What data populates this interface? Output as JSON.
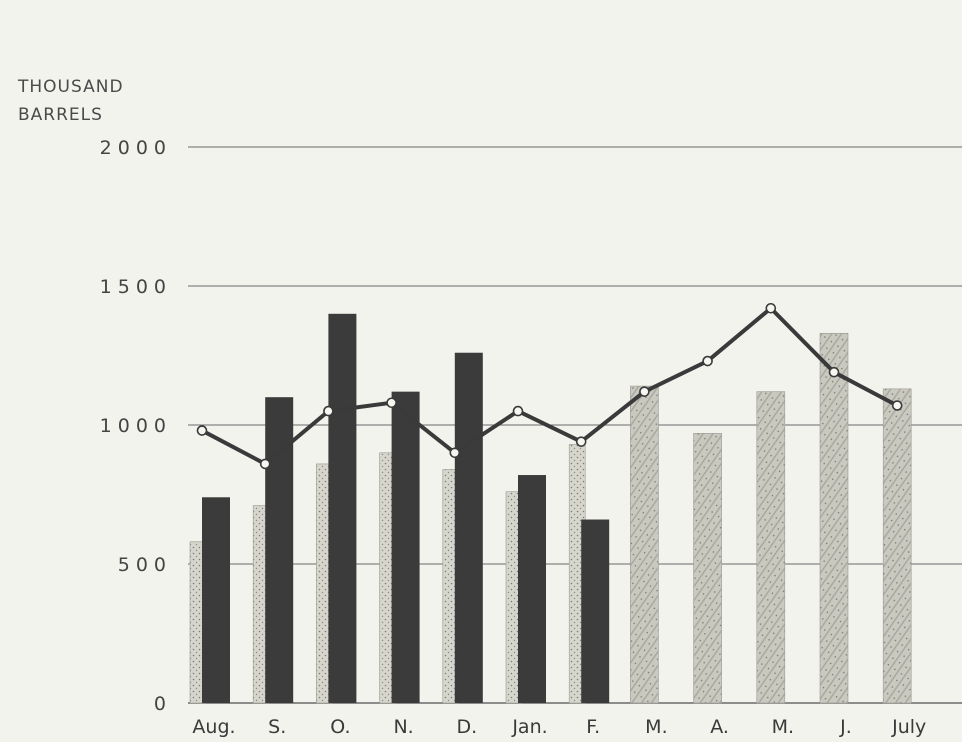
{
  "chart_data": {
    "type": "bar",
    "ylabel": [
      "THOUSAND",
      "BARRELS"
    ],
    "ylim": [
      0,
      2000
    ],
    "yticks": [
      0,
      500,
      1000,
      1500,
      2000
    ],
    "ytick_labels": [
      "0",
      "500",
      "1000",
      "1500",
      "2000"
    ],
    "categories": [
      "Aug.",
      "S.",
      "O.",
      "N.",
      "D.",
      "Jan.",
      "F.",
      "M.",
      "A.",
      "M.",
      "J.",
      "July"
    ],
    "grid": true,
    "legend": "none",
    "series": [
      {
        "kind": "bar",
        "style": "dotted-light",
        "values": [
          580,
          710,
          860,
          900,
          840,
          760,
          930,
          null,
          null,
          null,
          null,
          null
        ]
      },
      {
        "kind": "bar",
        "style": "solid-dark",
        "values": [
          740,
          1100,
          1400,
          1120,
          1260,
          820,
          660,
          null,
          null,
          null,
          null,
          null
        ]
      },
      {
        "kind": "bar",
        "style": "hatched-light",
        "values": [
          null,
          null,
          null,
          null,
          null,
          null,
          null,
          1140,
          970,
          1120,
          1330,
          1130
        ]
      },
      {
        "kind": "line",
        "style": "dark-line-open-markers",
        "values": [
          980,
          860,
          1050,
          1080,
          900,
          1050,
          940,
          1120,
          1230,
          1420,
          1190,
          1070
        ]
      }
    ],
    "colors": {
      "dark_bar": "#3b3b3b",
      "light_bar": "#cfcfc6",
      "line": "#3a3a3a",
      "grid": "#6a6a6a"
    }
  }
}
